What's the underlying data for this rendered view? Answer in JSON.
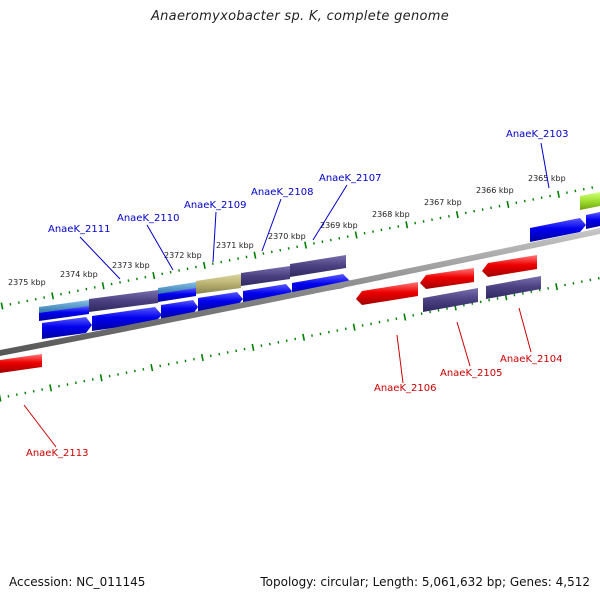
{
  "title": "Anaeromyxobacter sp. K, complete genome",
  "footer": {
    "accession": "Accession: NC_011145",
    "summary": "Topology: circular; Length: 5,061,632 bp; Genes: 4,512"
  },
  "colors": {
    "forward_gene": "#0000e6",
    "reverse_gene": "#e60000",
    "feature_dark": "#4a4080",
    "feature_light": "#4488bb",
    "feature_olive": "#b8b070",
    "feature_lime": "#a0e030",
    "tick": "#008000",
    "backbone": "#888888"
  },
  "scale_labels": [
    "2365 kbp",
    "2366 kbp",
    "2367 kbp",
    "2368 kbp",
    "2369 kbp",
    "2370 kbp",
    "2371 kbp",
    "2372 kbp",
    "2373 kbp",
    "2374 kbp",
    "2375 kbp"
  ],
  "genes": [
    {
      "label": "AnaeK_2103",
      "strand": "forward"
    },
    {
      "label": "AnaeK_2104",
      "strand": "reverse"
    },
    {
      "label": "AnaeK_2105",
      "strand": "reverse"
    },
    {
      "label": "AnaeK_2106",
      "strand": "reverse"
    },
    {
      "label": "AnaeK_2107",
      "strand": "forward"
    },
    {
      "label": "AnaeK_2108",
      "strand": "forward"
    },
    {
      "label": "AnaeK_2109",
      "strand": "forward"
    },
    {
      "label": "AnaeK_2110",
      "strand": "forward"
    },
    {
      "label": "AnaeK_2111",
      "strand": "forward"
    },
    {
      "label": "AnaeK_2113",
      "strand": "reverse"
    }
  ]
}
